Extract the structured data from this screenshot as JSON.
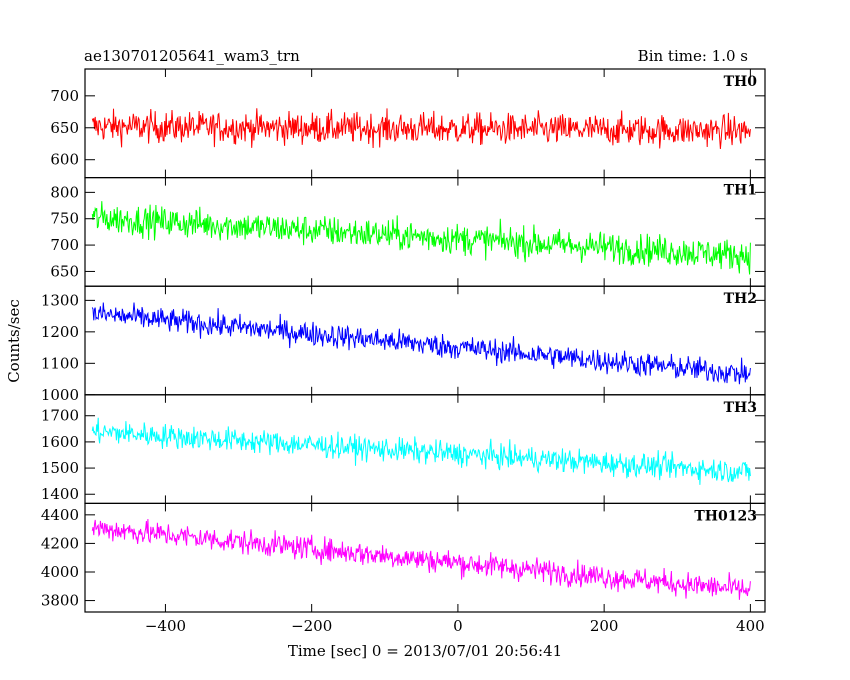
{
  "header": {
    "left_title": "ae130701205641_wam3_trn",
    "right_title": "Bin time: 1.0 s"
  },
  "chart_data": {
    "type": "line",
    "title": "ae130701205641_wam3_trn",
    "subtitle": "Bin time: 1.0 s",
    "xlabel": "Time [sec] 0 = 2013/07/01 20:56:41",
    "ylabel": "Counts/sec",
    "xlim": [
      -510,
      420
    ],
    "x_ticks": [
      -400,
      -200,
      0,
      200,
      400
    ],
    "x_tick_labels": [
      "−400",
      "−200",
      "0",
      "200",
      "400"
    ],
    "x_range_data": [
      -500,
      400
    ],
    "grid": false,
    "legend": "none",
    "panels": [
      {
        "name": "TH0",
        "color": "#ff0000",
        "ylim": [
          572,
          742
        ],
        "y_ticks": [
          600,
          650,
          700
        ],
        "trend": {
          "start": 652,
          "end": 645
        },
        "noise_amplitude": 32
      },
      {
        "name": "TH1",
        "color": "#00ff00",
        "ylim": [
          622,
          828
        ],
        "y_ticks": [
          650,
          700,
          750,
          800
        ],
        "trend": {
          "start": 752,
          "end": 680
        },
        "noise_amplitude": 38
      },
      {
        "name": "TH2",
        "color": "#0000ff",
        "ylim": [
          1000,
          1345
        ],
        "y_ticks": [
          1000,
          1100,
          1200,
          1300
        ],
        "trend": {
          "start": 1258,
          "end": 1065
        },
        "noise_amplitude": 50
      },
      {
        "name": "TH3",
        "color": "#00ffff",
        "ylim": [
          1365,
          1780
        ],
        "y_ticks": [
          1400,
          1500,
          1600,
          1700
        ],
        "trend": {
          "start": 1640,
          "end": 1485
        },
        "noise_amplitude": 60
      },
      {
        "name": "TH0123",
        "color": "#ff00ff",
        "ylim": [
          3720,
          4480
        ],
        "y_ticks": [
          3800,
          4000,
          4200,
          4400
        ],
        "trend": {
          "start": 4310,
          "end": 3870
        },
        "noise_amplitude": 110
      }
    ]
  }
}
